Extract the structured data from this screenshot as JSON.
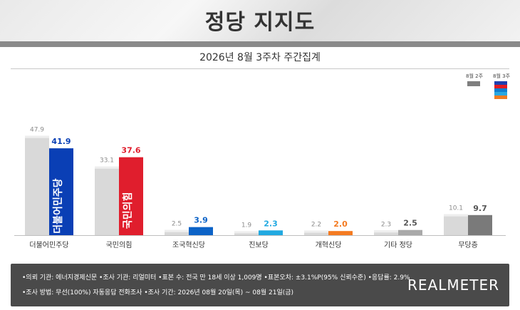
{
  "header": {
    "title": "정당 지지도"
  },
  "subtitle": "2026년 8월 3주차 주간집계",
  "legend": {
    "prev": "8월 2주",
    "curr": "8월 3주"
  },
  "colors": {
    "prev": "#d9d9d9",
    "legend_curr": [
      "#1f3fb0",
      "#e31b23",
      "#0e7fd0",
      "#2aa8e0",
      "#f07c21"
    ]
  },
  "chart_data": {
    "type": "bar",
    "categories": [
      "더불어민주당",
      "국민의힘",
      "조국혁신당",
      "진보당",
      "개혁신당",
      "기타 정당",
      "무당층"
    ],
    "series": [
      {
        "name": "8월 2주",
        "values": [
          47.9,
          33.1,
          2.5,
          1.9,
          2.2,
          2.3,
          10.1
        ]
      },
      {
        "name": "8월 3주",
        "values": [
          41.9,
          37.6,
          3.9,
          2.3,
          2.0,
          2.5,
          9.7
        ]
      }
    ],
    "current_colors": [
      "#0a3fb5",
      "#e01e2d",
      "#0c63c7",
      "#21a9e1",
      "#f47a20",
      "#a9a9a9",
      "#7a7a7a"
    ],
    "bar_logos": [
      "더불어민주당",
      "국민의힘",
      "",
      "",
      "",
      "",
      ""
    ],
    "ylim": [
      0,
      55
    ]
  },
  "footer": {
    "line1": "•의뢰 기관: 에너지경제신문 •조사 기관: 리얼미터 •표본 수: 전국 만 18세 이상 1,009명 •표본오차: ±3.1%P(95% 신뢰수준) •응답률: 2.9%",
    "line2": "•조사 방법: 무선(100%) 자동응답 전화조사 •조사 기간: 2026년 08월 20일(목) ~ 08월 21일(금)",
    "logo": "REALMETER"
  }
}
